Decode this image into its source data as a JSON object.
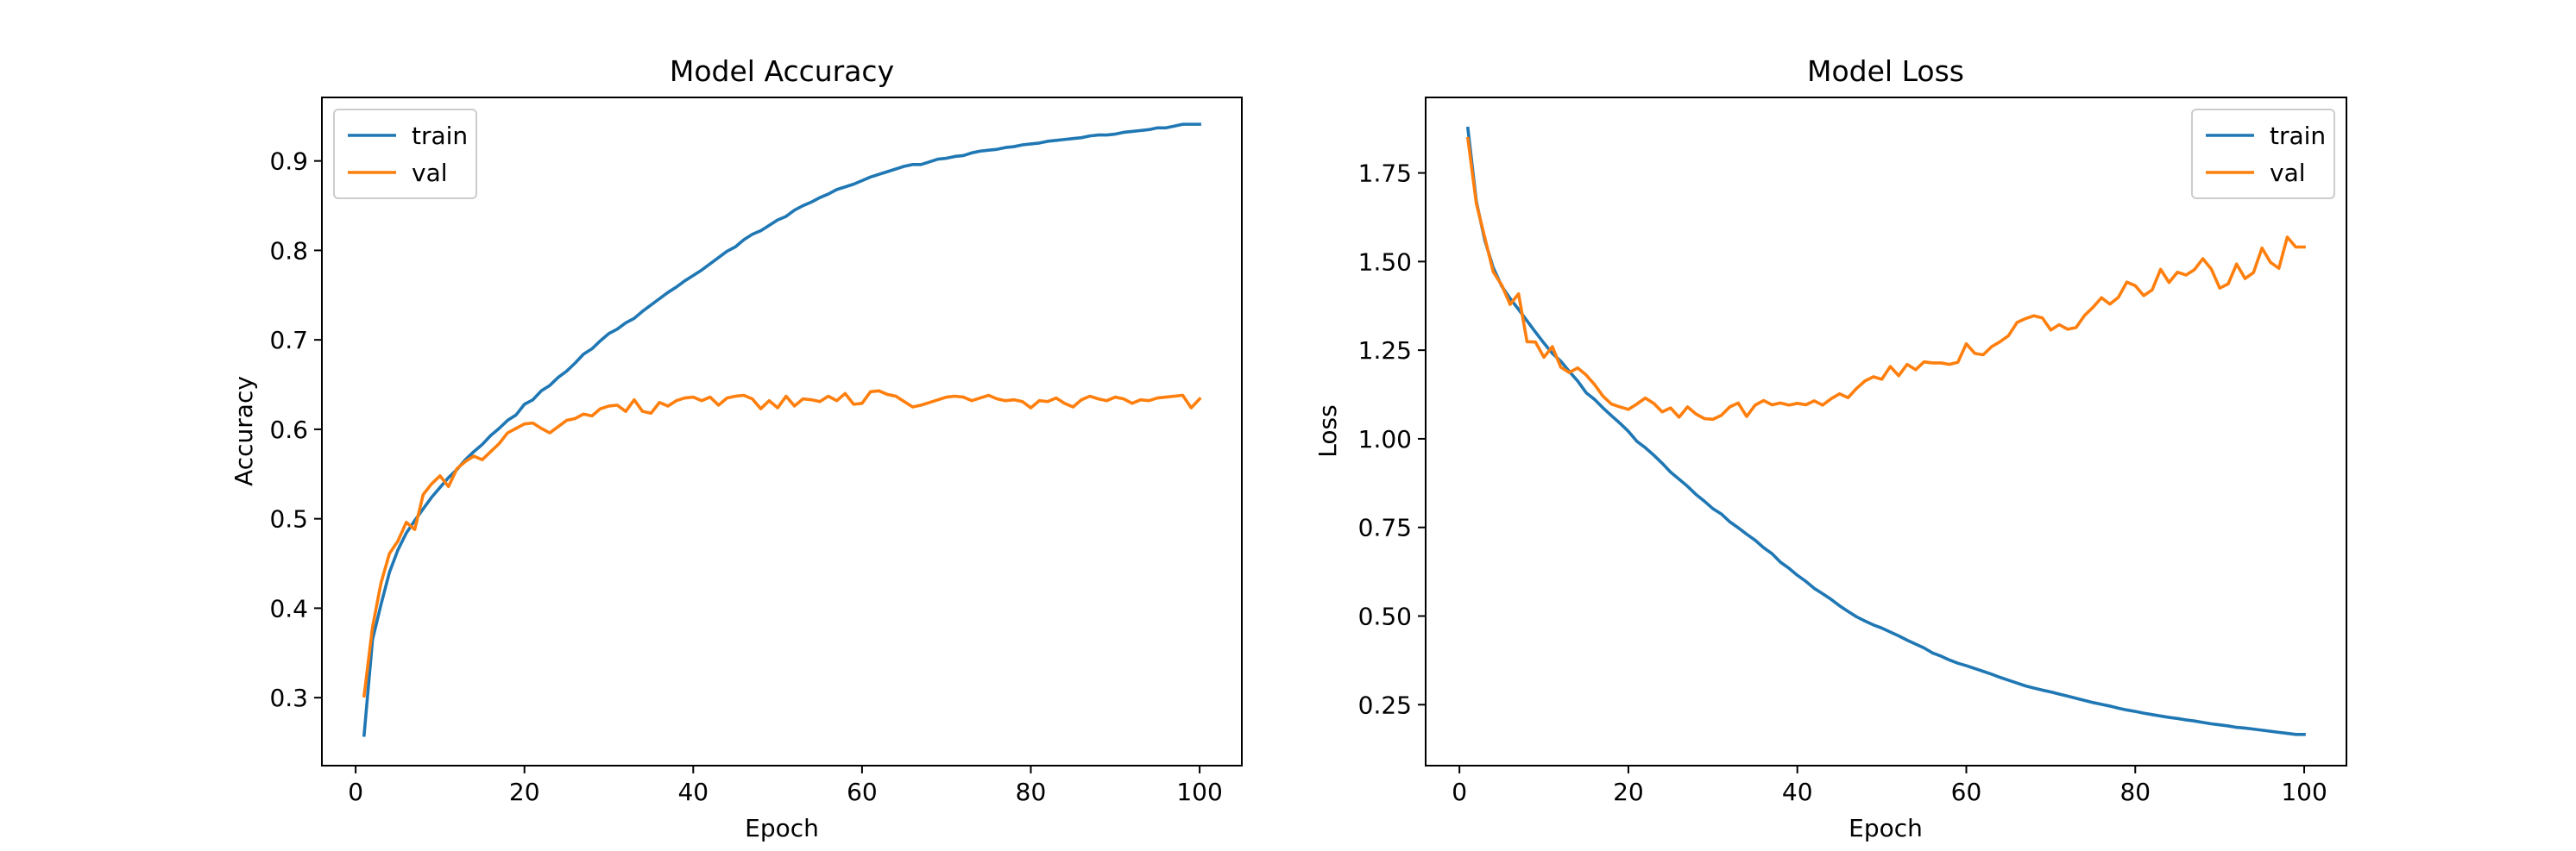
{
  "chart_data": [
    {
      "type": "line",
      "title": "Model Accuracy",
      "xlabel": "Epoch",
      "ylabel": "Accuracy",
      "xlim": [
        -4,
        105
      ],
      "ylim": [
        0.224,
        0.971
      ],
      "xticks": [
        0,
        20,
        40,
        60,
        80,
        100
      ],
      "yticks": [
        0.3,
        0.4,
        0.5,
        0.6,
        0.7,
        0.8,
        0.9
      ],
      "ytick_labels": [
        "0.3",
        "0.4",
        "0.5",
        "0.6",
        "0.7",
        "0.8",
        "0.9"
      ],
      "legend": "top-left",
      "grid": false,
      "x": [
        1,
        2,
        3,
        4,
        5,
        6,
        7,
        8,
        9,
        10,
        11,
        12,
        13,
        14,
        15,
        16,
        17,
        18,
        19,
        20,
        21,
        22,
        23,
        24,
        25,
        26,
        27,
        28,
        29,
        30,
        31,
        32,
        33,
        34,
        35,
        36,
        37,
        38,
        39,
        40,
        41,
        42,
        43,
        44,
        45,
        46,
        47,
        48,
        49,
        50,
        51,
        52,
        53,
        54,
        55,
        56,
        57,
        58,
        59,
        60,
        61,
        62,
        63,
        64,
        65,
        66,
        67,
        68,
        69,
        70,
        71,
        72,
        73,
        74,
        75,
        76,
        77,
        78,
        79,
        80,
        81,
        82,
        83,
        84,
        85,
        86,
        87,
        88,
        89,
        90,
        91,
        92,
        93,
        94,
        95,
        96,
        97,
        98,
        99,
        100
      ],
      "series": [
        {
          "name": "train",
          "color": "#1f77b4",
          "values": [
            0.258,
            0.365,
            0.404,
            0.44,
            0.465,
            0.484,
            0.498,
            0.511,
            0.524,
            0.535,
            0.546,
            0.555,
            0.566,
            0.575,
            0.583,
            0.593,
            0.601,
            0.61,
            0.616,
            0.628,
            0.633,
            0.643,
            0.649,
            0.658,
            0.665,
            0.674,
            0.684,
            0.69,
            0.699,
            0.707,
            0.712,
            0.719,
            0.724,
            0.732,
            0.739,
            0.746,
            0.753,
            0.759,
            0.766,
            0.772,
            0.778,
            0.785,
            0.792,
            0.799,
            0.804,
            0.812,
            0.818,
            0.822,
            0.828,
            0.834,
            0.838,
            0.845,
            0.85,
            0.854,
            0.859,
            0.863,
            0.868,
            0.871,
            0.874,
            0.878,
            0.882,
            0.885,
            0.888,
            0.891,
            0.894,
            0.896,
            0.896,
            0.899,
            0.902,
            0.903,
            0.905,
            0.906,
            0.909,
            0.911,
            0.912,
            0.913,
            0.915,
            0.916,
            0.918,
            0.919,
            0.92,
            0.922,
            0.923,
            0.924,
            0.925,
            0.926,
            0.928,
            0.929,
            0.929,
            0.93,
            0.932,
            0.933,
            0.934,
            0.935,
            0.937,
            0.937,
            0.939,
            0.941,
            0.941,
            0.941
          ]
        },
        {
          "name": "val",
          "color": "#ff7f0e",
          "values": [
            0.302,
            0.379,
            0.428,
            0.461,
            0.475,
            0.496,
            0.488,
            0.527,
            0.539,
            0.548,
            0.536,
            0.556,
            0.564,
            0.57,
            0.566,
            0.575,
            0.584,
            0.596,
            0.601,
            0.606,
            0.607,
            0.601,
            0.596,
            0.603,
            0.61,
            0.612,
            0.617,
            0.615,
            0.623,
            0.626,
            0.627,
            0.62,
            0.633,
            0.62,
            0.618,
            0.63,
            0.626,
            0.632,
            0.635,
            0.636,
            0.632,
            0.636,
            0.627,
            0.635,
            0.637,
            0.638,
            0.634,
            0.623,
            0.632,
            0.624,
            0.637,
            0.626,
            0.634,
            0.633,
            0.631,
            0.637,
            0.632,
            0.64,
            0.628,
            0.629,
            0.642,
            0.643,
            0.639,
            0.637,
            0.631,
            0.625,
            0.627,
            0.63,
            0.633,
            0.636,
            0.637,
            0.636,
            0.632,
            0.635,
            0.638,
            0.634,
            0.632,
            0.633,
            0.631,
            0.624,
            0.632,
            0.631,
            0.635,
            0.629,
            0.625,
            0.633,
            0.637,
            0.634,
            0.632,
            0.636,
            0.634,
            0.629,
            0.633,
            0.632,
            0.635,
            0.636,
            0.637,
            0.638,
            0.624,
            0.634
          ]
        }
      ]
    },
    {
      "type": "line",
      "title": "Model Loss",
      "xlabel": "Epoch",
      "ylabel": "Loss",
      "xlim": [
        -4,
        105
      ],
      "ylim": [
        0.078,
        1.963
      ],
      "xticks": [
        0,
        20,
        40,
        60,
        80,
        100
      ],
      "yticks": [
        0.25,
        0.5,
        0.75,
        1.0,
        1.25,
        1.5,
        1.75
      ],
      "ytick_labels": [
        "0.25",
        "0.50",
        "0.75",
        "1.00",
        "1.25",
        "1.50",
        "1.75"
      ],
      "legend": "top-right",
      "grid": false,
      "x": [
        1,
        2,
        3,
        4,
        5,
        6,
        7,
        8,
        9,
        10,
        11,
        12,
        13,
        14,
        15,
        16,
        17,
        18,
        19,
        20,
        21,
        22,
        23,
        24,
        25,
        26,
        27,
        28,
        29,
        30,
        31,
        32,
        33,
        34,
        35,
        36,
        37,
        38,
        39,
        40,
        41,
        42,
        43,
        44,
        45,
        46,
        47,
        48,
        49,
        50,
        51,
        52,
        53,
        54,
        55,
        56,
        57,
        58,
        59,
        60,
        61,
        62,
        63,
        64,
        65,
        66,
        67,
        68,
        69,
        70,
        71,
        72,
        73,
        74,
        75,
        76,
        77,
        78,
        79,
        80,
        81,
        82,
        83,
        84,
        85,
        86,
        87,
        88,
        89,
        90,
        91,
        92,
        93,
        94,
        95,
        96,
        97,
        98,
        99,
        100
      ],
      "series": [
        {
          "name": "train",
          "color": "#1f77b4",
          "values": [
            1.876,
            1.67,
            1.56,
            1.483,
            1.431,
            1.396,
            1.365,
            1.333,
            1.301,
            1.27,
            1.241,
            1.219,
            1.19,
            1.163,
            1.13,
            1.111,
            1.087,
            1.065,
            1.044,
            1.021,
            0.993,
            0.975,
            0.954,
            0.931,
            0.906,
            0.886,
            0.866,
            0.843,
            0.824,
            0.803,
            0.788,
            0.766,
            0.749,
            0.731,
            0.714,
            0.693,
            0.676,
            0.652,
            0.635,
            0.615,
            0.598,
            0.578,
            0.563,
            0.547,
            0.529,
            0.513,
            0.498,
            0.486,
            0.475,
            0.466,
            0.455,
            0.444,
            0.432,
            0.421,
            0.41,
            0.396,
            0.387,
            0.376,
            0.367,
            0.36,
            0.352,
            0.344,
            0.336,
            0.327,
            0.319,
            0.311,
            0.303,
            0.297,
            0.291,
            0.286,
            0.28,
            0.274,
            0.268,
            0.262,
            0.256,
            0.251,
            0.246,
            0.24,
            0.235,
            0.231,
            0.226,
            0.222,
            0.218,
            0.214,
            0.211,
            0.207,
            0.204,
            0.2,
            0.196,
            0.193,
            0.19,
            0.186,
            0.184,
            0.181,
            0.178,
            0.175,
            0.172,
            0.169,
            0.166,
            0.166
          ]
        },
        {
          "name": "val",
          "color": "#ff7f0e",
          "values": [
            1.847,
            1.664,
            1.568,
            1.471,
            1.434,
            1.379,
            1.409,
            1.274,
            1.273,
            1.23,
            1.26,
            1.202,
            1.187,
            1.2,
            1.18,
            1.153,
            1.12,
            1.098,
            1.09,
            1.083,
            1.098,
            1.115,
            1.1,
            1.076,
            1.087,
            1.061,
            1.09,
            1.07,
            1.057,
            1.055,
            1.066,
            1.09,
            1.101,
            1.063,
            1.095,
            1.108,
            1.096,
            1.101,
            1.095,
            1.1,
            1.096,
            1.107,
            1.095,
            1.113,
            1.127,
            1.116,
            1.142,
            1.163,
            1.175,
            1.168,
            1.204,
            1.178,
            1.21,
            1.195,
            1.217,
            1.214,
            1.214,
            1.21,
            1.216,
            1.268,
            1.241,
            1.237,
            1.26,
            1.274,
            1.291,
            1.328,
            1.339,
            1.347,
            1.341,
            1.307,
            1.322,
            1.309,
            1.314,
            1.348,
            1.371,
            1.398,
            1.38,
            1.399,
            1.442,
            1.432,
            1.404,
            1.42,
            1.478,
            1.441,
            1.47,
            1.462,
            1.477,
            1.508,
            1.479,
            1.425,
            1.437,
            1.493,
            1.452,
            1.469,
            1.538,
            1.498,
            1.481,
            1.569,
            1.541,
            1.541
          ]
        }
      ]
    }
  ]
}
